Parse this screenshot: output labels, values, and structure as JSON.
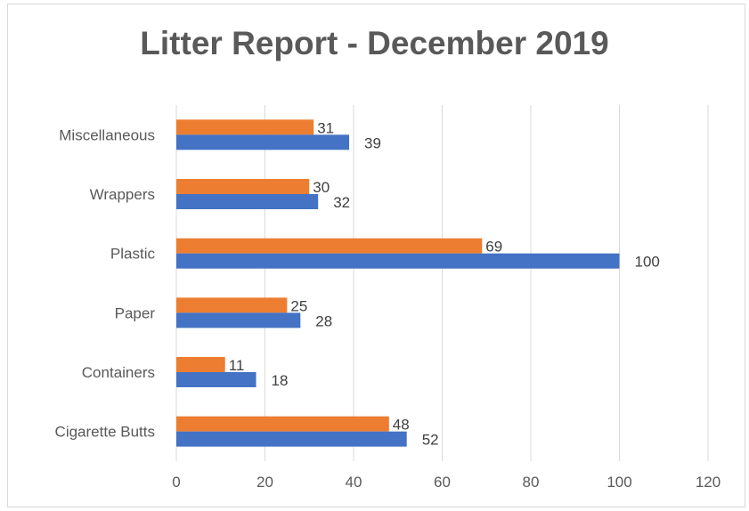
{
  "chart_data": {
    "type": "bar",
    "orientation": "horizontal",
    "title": "Litter Report - December 2019",
    "categories": [
      "Cigarette Butts",
      "Containers",
      "Paper",
      "Plastic",
      "Wrappers",
      "Miscellaneous"
    ],
    "series": [
      {
        "color": "#4472C4",
        "values": [
          52,
          18,
          28,
          100,
          32,
          39
        ]
      },
      {
        "color": "#ED7D31",
        "values": [
          48,
          11,
          25,
          69,
          30,
          31
        ]
      }
    ],
    "xlim": [
      0,
      120
    ],
    "xticks": [
      0,
      20,
      40,
      60,
      80,
      100,
      120
    ],
    "grid": true,
    "legend": "none",
    "data_labels": true
  }
}
